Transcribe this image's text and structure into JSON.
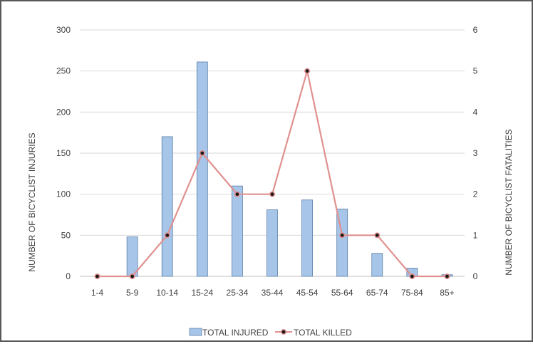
{
  "chart_data": {
    "type": "bar",
    "categories": [
      "1-4",
      "5-9",
      "10-14",
      "15-24",
      "25-34",
      "35-44",
      "45-54",
      "55-64",
      "65-74",
      "75-84",
      "85+"
    ],
    "series": [
      {
        "name": "TOTAL INJURED",
        "type": "bar",
        "axis": "left",
        "values": [
          0,
          48,
          170,
          261,
          110,
          81,
          93,
          82,
          28,
          10,
          2
        ]
      },
      {
        "name": "TOTAL KILLED",
        "type": "line",
        "axis": "right",
        "values": [
          0,
          0,
          1,
          3,
          2,
          2,
          5,
          1,
          1,
          0,
          0
        ]
      }
    ],
    "ylabel": "NUMBER OF BICYCLIST INJURIES",
    "y2label": "NUMBER OF BICYCLIST FATALITIES",
    "ylim": [
      0,
      300
    ],
    "y2lim": [
      0,
      6
    ],
    "yticks": [
      0,
      50,
      100,
      150,
      200,
      250,
      300
    ],
    "y2ticks": [
      0,
      1,
      2,
      3,
      4,
      5,
      6
    ],
    "grid": true,
    "legend_position": "bottom",
    "colors": {
      "bar_fill": "#a6c5e8",
      "bar_stroke": "#5b7fa8",
      "line": "#e0908f",
      "marker": "#1a1a1a",
      "grid": "#d9d9d9"
    }
  }
}
